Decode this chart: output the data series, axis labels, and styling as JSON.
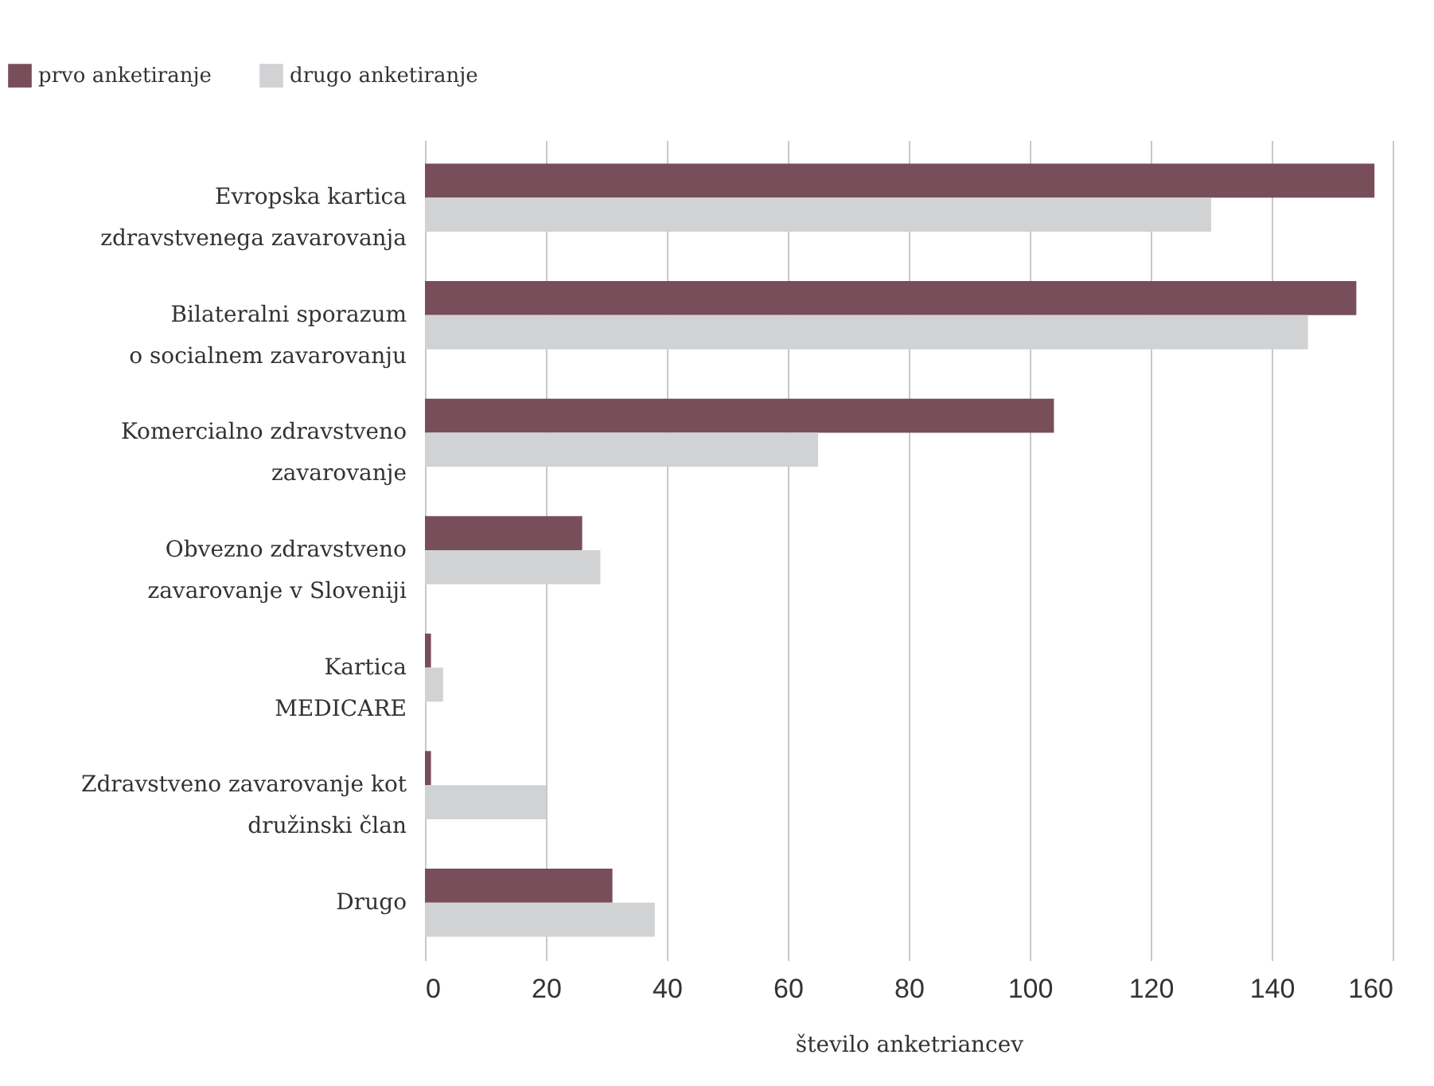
{
  "chart_data": {
    "type": "bar",
    "orientation": "horizontal",
    "xlabel": "število anketriancev",
    "categories": [
      "Evropska kartica\nzdravstvenega zavarovanja",
      "Bilateralni sporazum\no socialnem zavarovanju",
      "Komercialno zdravstveno\nzavarovanje",
      "Obvezno zdravstveno\nzavarovanje v Sloveniji",
      "Kartica\nMEDICARE",
      "Zdravstveno zavarovanje kot\ndružinski član",
      "Drugo"
    ],
    "series": [
      {
        "name": "prvo anketiranje",
        "color": "#774e5a",
        "values": [
          157,
          154,
          104,
          26,
          1,
          1,
          31
        ]
      },
      {
        "name": "drugo anketiranje",
        "color": "#d1d2d4",
        "values": [
          130,
          146,
          65,
          29,
          3,
          20,
          38
        ]
      }
    ],
    "xlim": [
      0,
      160
    ],
    "xticks": [
      0,
      20,
      40,
      60,
      80,
      100,
      120,
      140,
      160
    ],
    "grid": "x",
    "legend": "top left"
  }
}
